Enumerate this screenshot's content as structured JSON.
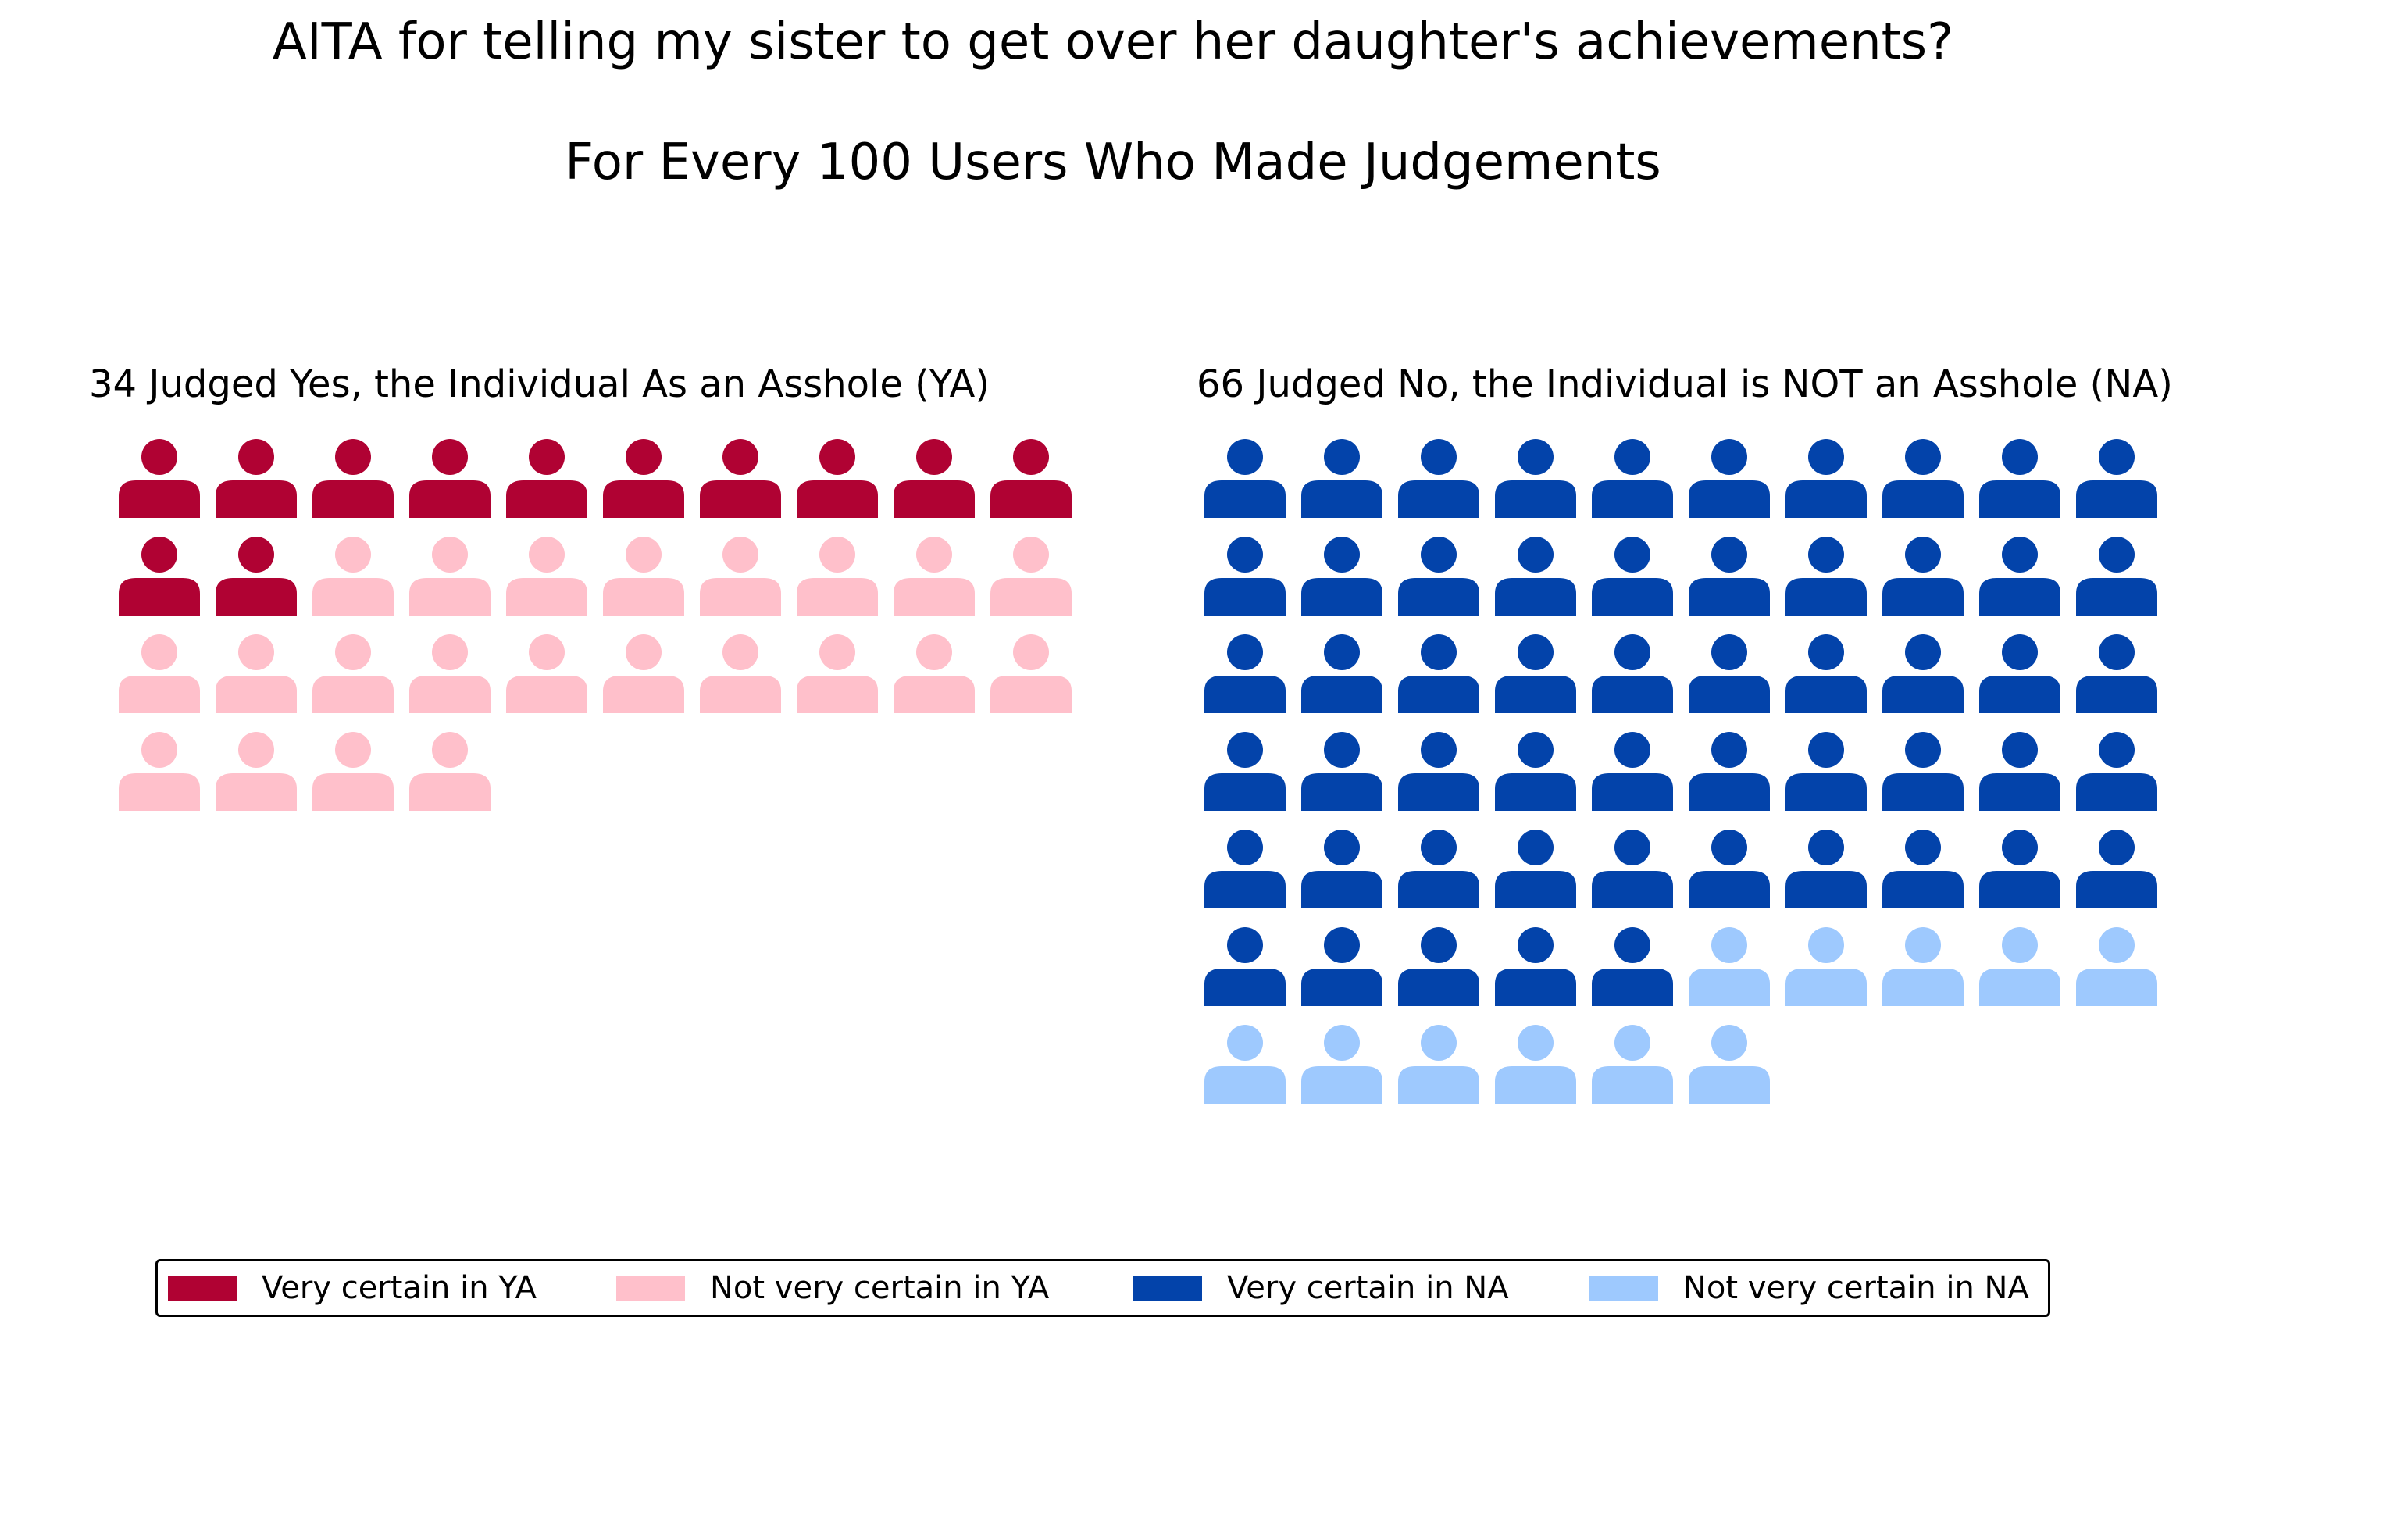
{
  "chart_data": {
    "type": "pictograph",
    "title": "AITA for telling my sister to get over her daughter's achievements?",
    "subtitle": "For Every 100 Users Who Made Judgements",
    "units_per_icon": 1,
    "icons_per_row": 10,
    "groups": [
      {
        "label": "34 Judged Yes, the Individual As an Asshole (YA)",
        "total": 34,
        "segments": [
          {
            "name": "Very certain in YA",
            "count": 12,
            "color": "#b00233"
          },
          {
            "name": "Not very certain in YA",
            "count": 22,
            "color": "#ffc0cb"
          }
        ]
      },
      {
        "label": "66 Judged No, the Individual is NOT an Asshole (NA)",
        "total": 66,
        "segments": [
          {
            "name": "Very certain in NA",
            "count": 55,
            "color": "#0343aa"
          },
          {
            "name": "Not very certain in NA",
            "count": 11,
            "color": "#9ec9fe"
          }
        ]
      }
    ],
    "legend": {
      "position": "bottom",
      "entries": [
        {
          "name": "Very certain in YA",
          "color": "#b00233"
        },
        {
          "name": "Not very certain in YA",
          "color": "#ffc0cb"
        },
        {
          "name": "Very certain in NA",
          "color": "#0343aa"
        },
        {
          "name": "Not very certain in NA",
          "color": "#9ec9fe"
        }
      ]
    },
    "icon": "person-icon"
  }
}
